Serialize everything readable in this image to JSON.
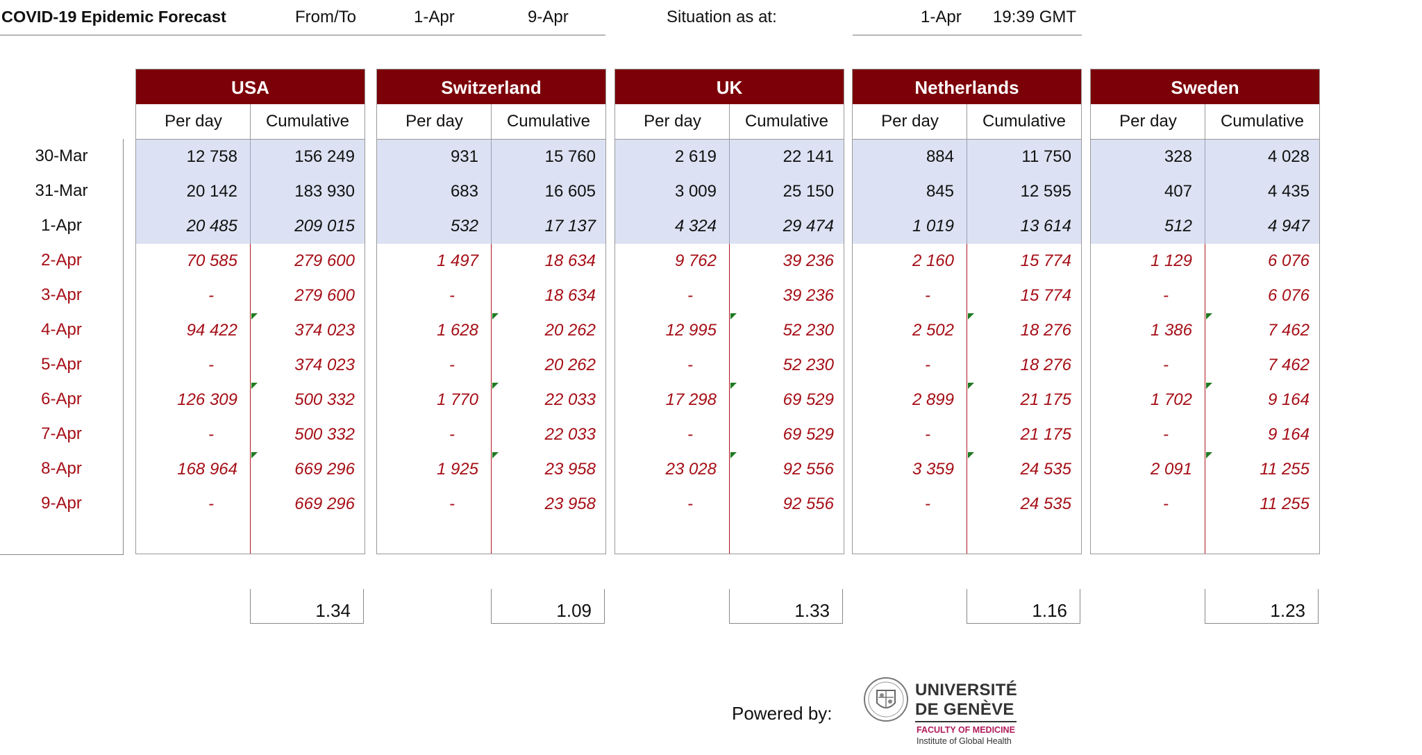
{
  "header": {
    "title": "COVID-19 Epidemic Forecast",
    "from_to_label": "From/To",
    "from_date": "1-Apr",
    "to_date": "9-Apr",
    "situation_label": "Situation as at:",
    "situation_date": "1-Apr",
    "situation_time": "19:39 GMT"
  },
  "subheaders": {
    "per_day": "Per day",
    "cumulative": "Cumulative"
  },
  "dates": [
    "30-Mar",
    "31-Mar",
    "1-Apr",
    "2-Apr",
    "3-Apr",
    "4-Apr",
    "5-Apr",
    "6-Apr",
    "7-Apr",
    "8-Apr",
    "9-Apr"
  ],
  "observed_row_count": 3,
  "countries": [
    {
      "name": "USA",
      "per_day": [
        "12 758",
        "20 142",
        "20 485",
        "70 585",
        "-",
        "94 422",
        "-",
        "126 309",
        "-",
        "168 964",
        "-"
      ],
      "cumulative": [
        "156 249",
        "183 930",
        "209 015",
        "279 600",
        "279 600",
        "374 023",
        "374 023",
        "500 332",
        "500 332",
        "669 296",
        "669 296"
      ],
      "ratio": "1.34"
    },
    {
      "name": "Switzerland",
      "per_day": [
        "931",
        "683",
        "532",
        "1 497",
        "-",
        "1 628",
        "-",
        "1 770",
        "-",
        "1 925",
        "-"
      ],
      "cumulative": [
        "15 760",
        "16 605",
        "17 137",
        "18 634",
        "18 634",
        "20 262",
        "20 262",
        "22 033",
        "22 033",
        "23 958",
        "23 958"
      ],
      "ratio": "1.09"
    },
    {
      "name": "UK",
      "per_day": [
        "2 619",
        "3 009",
        "4 324",
        "9 762",
        "-",
        "12 995",
        "-",
        "17 298",
        "-",
        "23 028",
        "-"
      ],
      "cumulative": [
        "22 141",
        "25 150",
        "29 474",
        "39 236",
        "39 236",
        "52 230",
        "52 230",
        "69 529",
        "69 529",
        "92 556",
        "92 556"
      ],
      "ratio": "1.33"
    },
    {
      "name": "Netherlands",
      "per_day": [
        "884",
        "845",
        "1 019",
        "2 160",
        "-",
        "2 502",
        "-",
        "2 899",
        "-",
        "3 359",
        "-"
      ],
      "cumulative": [
        "11 750",
        "12 595",
        "13 614",
        "15 774",
        "15 774",
        "18 276",
        "18 276",
        "21 175",
        "21 175",
        "24 535",
        "24 535"
      ],
      "ratio": "1.16"
    },
    {
      "name": "Sweden",
      "per_day": [
        "328",
        "407",
        "512",
        "1 129",
        "-",
        "1 386",
        "-",
        "1 702",
        "-",
        "2 091",
        "-"
      ],
      "cumulative": [
        "4 028",
        "4 435",
        "4 947",
        "6 076",
        "6 076",
        "7 462",
        "7 462",
        "9 164",
        "9 164",
        "11 255",
        "11 255"
      ],
      "ratio": "1.23"
    }
  ],
  "footer": {
    "powered_by": "Powered by:",
    "university_line1": "UNIVERSITÉ",
    "university_line2": "DE GENÈVE",
    "faculty": "FACULTY OF MEDICINE",
    "institute": "Institute of Global Health"
  },
  "colors": {
    "header_bg": "#7c0008",
    "observed_band": "#dce2f3",
    "forecast_text": "#a50e16",
    "comment_marker": "#1f7a22"
  }
}
